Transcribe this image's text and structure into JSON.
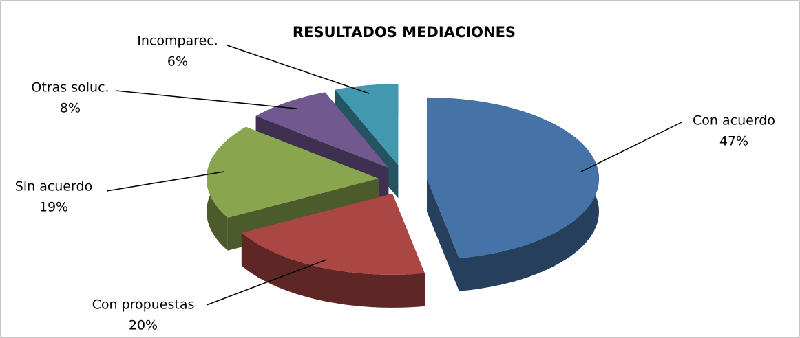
{
  "chart_data": {
    "type": "pie",
    "title": "RESULTADOS MEDIACIONES",
    "categories": [
      "Con acuerdo",
      "Con propuestas",
      "Sin acuerdo",
      "Otras soluc.",
      "Incomparec."
    ],
    "values": [
      47,
      20,
      19,
      8,
      6
    ],
    "value_labels": [
      "47%",
      "20%",
      "19%",
      "8%",
      "6%"
    ],
    "colors": [
      "#4572a7",
      "#aa4643",
      "#89a54e",
      "#71588f",
      "#4198af"
    ]
  }
}
